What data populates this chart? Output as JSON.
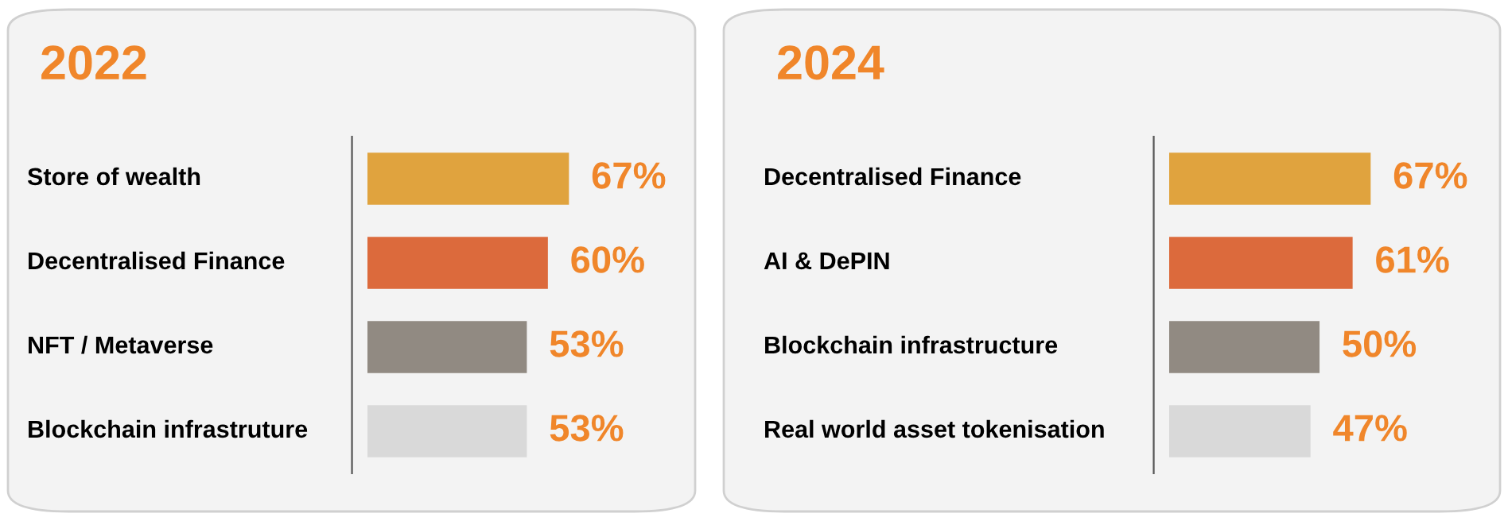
{
  "chart_data": [
    {
      "type": "bar",
      "orientation": "horizontal",
      "title": "2022",
      "categories": [
        "Store of wealth",
        "Decentralised Finance",
        "NFT / Metaverse",
        "Blockchain infrastruture"
      ],
      "values": [
        67,
        60,
        53,
        53
      ],
      "value_labels": [
        "67%",
        "60%",
        "53%",
        "53%"
      ],
      "colors": [
        "#e0a33e",
        "#dc6a3c",
        "#918a82",
        "#d9d9d9"
      ]
    },
    {
      "type": "bar",
      "orientation": "horizontal",
      "title": "2024",
      "categories": [
        "Decentralised Finance",
        "AI & DePIN",
        "Blockchain infrastructure",
        "Real world asset tokenisation"
      ],
      "values": [
        67,
        61,
        50,
        47
      ],
      "value_labels": [
        "67%",
        "61%",
        "50%",
        "47%"
      ],
      "colors": [
        "#e0a33e",
        "#dc6a3c",
        "#918a82",
        "#d9d9d9"
      ]
    }
  ]
}
